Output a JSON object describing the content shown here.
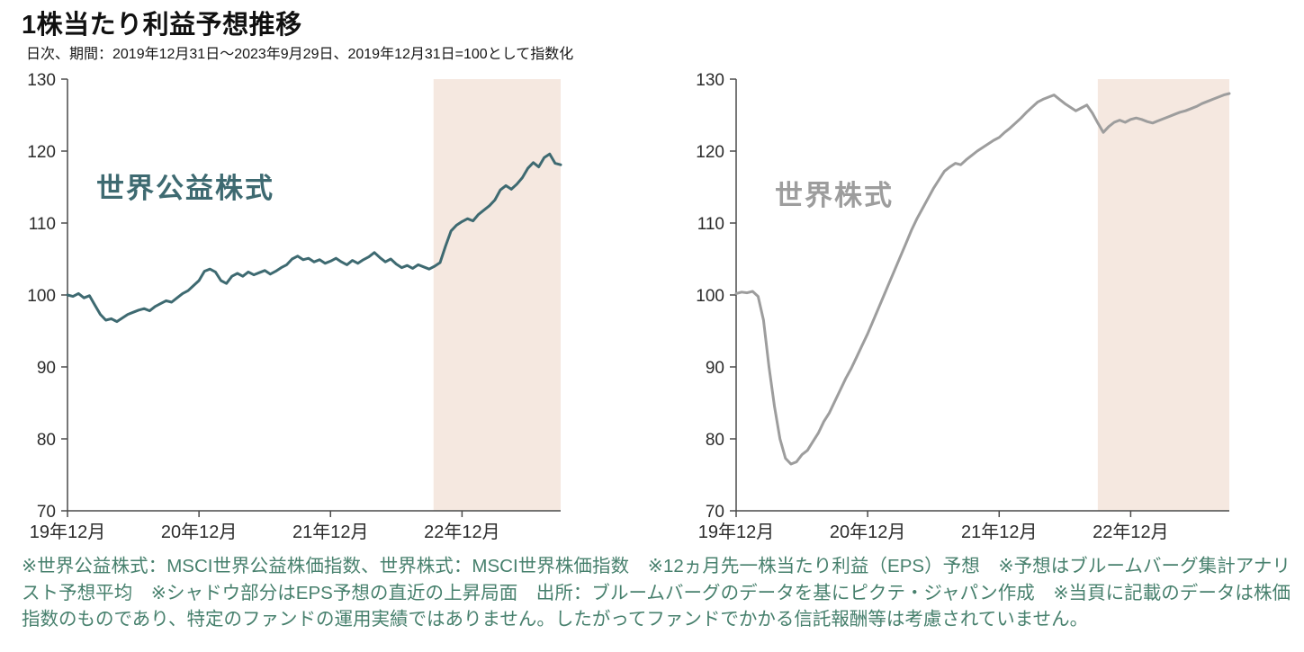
{
  "title": "1株当たり利益予想推移",
  "subtitle": "日次、期間：2019年12月31日～2023年9月29日、2019年12月31日=100として指数化",
  "footer": {
    "note": "※世界公益株式：MSCI世界公益株価指数、世界株式：MSCI世界株価指数　※12ヵ月先一株当たり利益（EPS）予想　※予想はブルームバーグ集計アナリスト予想平均　※シャドウ部分はEPS予想の直近の上昇局面　出所：ブルームバーグのデータを基にピクテ・ジャパン作成　※当頁に記載のデータは株価指数のものであり、特定のファンドの運用実績ではありません。したがってファンドでかかる信託報酬等は考慮されていません。",
    "color": "#47806d"
  },
  "styles": {
    "axis_color": "#4a4a4a",
    "tick_text_color": "#2b2b2b",
    "background": "#ffffff"
  },
  "chart_data": [
    {
      "type": "line",
      "name": "世界公益株式",
      "color": "#3e6a71",
      "x_unit": "months since 2019-12-31 (daily data indexed, 2019-12-31 = 100)",
      "x_start": 0,
      "x_step": 0.5,
      "xlim": [
        0,
        45
      ],
      "ylim": [
        70,
        130
      ],
      "yticks": [
        70,
        80,
        90,
        100,
        110,
        120,
        130
      ],
      "xticks": [
        {
          "x": 0,
          "label": "19年12月"
        },
        {
          "x": 12,
          "label": "20年12月"
        },
        {
          "x": 24,
          "label": "21年12月"
        },
        {
          "x": 36,
          "label": "22年12月"
        }
      ],
      "shade": {
        "x0": 33.4,
        "x1": 45,
        "color": "#f5e8e0",
        "meaning": "EPS予想の直近の上昇局面"
      },
      "values": [
        100,
        99.8,
        100.2,
        99.6,
        99.9,
        98.6,
        97.3,
        96.5,
        96.7,
        96.3,
        96.8,
        97.3,
        97.6,
        97.9,
        98.1,
        97.8,
        98.4,
        98.8,
        99.2,
        99,
        99.6,
        100.2,
        100.6,
        101.3,
        102,
        103.3,
        103.6,
        103.2,
        102,
        101.6,
        102.6,
        103,
        102.6,
        103.2,
        102.8,
        103.1,
        103.4,
        102.9,
        103.3,
        103.8,
        104.2,
        105,
        105.4,
        104.9,
        105.1,
        104.6,
        104.9,
        104.4,
        104.7,
        105.1,
        104.6,
        104.2,
        104.8,
        104.4,
        104.9,
        105.3,
        105.9,
        105.2,
        104.6,
        105,
        104.3,
        103.8,
        104.1,
        103.7,
        104.2,
        103.9,
        103.6,
        104,
        104.5,
        106.8,
        108.9,
        109.7,
        110.2,
        110.6,
        110.3,
        111.2,
        111.8,
        112.4,
        113.2,
        114.6,
        115.2,
        114.7,
        115.4,
        116.3,
        117.6,
        118.4,
        117.8,
        119.1,
        119.6,
        118.3,
        118.1
      ]
    },
    {
      "type": "line",
      "name": "世界株式",
      "color": "#9d9d9d",
      "x_unit": "months since 2019-12-31 (daily data indexed, 2019-12-31 = 100)",
      "x_start": 0,
      "x_step": 0.5,
      "xlim": [
        0,
        45
      ],
      "ylim": [
        70,
        130
      ],
      "yticks": [
        70,
        80,
        90,
        100,
        110,
        120,
        130
      ],
      "xticks": [
        {
          "x": 0,
          "label": "19年12月"
        },
        {
          "x": 12,
          "label": "20年12月"
        },
        {
          "x": 24,
          "label": "21年12月"
        },
        {
          "x": 36,
          "label": "22年12月"
        }
      ],
      "shade": {
        "x0": 33,
        "x1": 45,
        "color": "#f5e8e0",
        "meaning": "EPS予想の直近の上昇局面"
      },
      "values": [
        100.2,
        100.4,
        100.3,
        100.5,
        99.8,
        96.5,
        90,
        84.5,
        80,
        77.3,
        76.5,
        76.8,
        77.8,
        78.4,
        79.6,
        80.8,
        82.4,
        83.6,
        85.2,
        86.8,
        88.4,
        89.8,
        91.4,
        93,
        94.6,
        96.4,
        98.2,
        100,
        101.8,
        103.6,
        105.4,
        107.2,
        109,
        110.6,
        112,
        113.4,
        114.8,
        116,
        117.2,
        117.8,
        118.3,
        118.1,
        118.8,
        119.4,
        120,
        120.5,
        121,
        121.5,
        121.9,
        122.6,
        123.2,
        123.9,
        124.6,
        125.4,
        126.1,
        126.8,
        127.2,
        127.5,
        127.8,
        127.2,
        126.6,
        126.1,
        125.6,
        126,
        126.4,
        125.3,
        123.9,
        122.6,
        123.4,
        124,
        124.3,
        124,
        124.4,
        124.6,
        124.4,
        124.1,
        123.9,
        124.2,
        124.5,
        124.8,
        125.1,
        125.4,
        125.6,
        125.9,
        126.2,
        126.6,
        126.9,
        127.2,
        127.5,
        127.8,
        128
      ]
    }
  ]
}
